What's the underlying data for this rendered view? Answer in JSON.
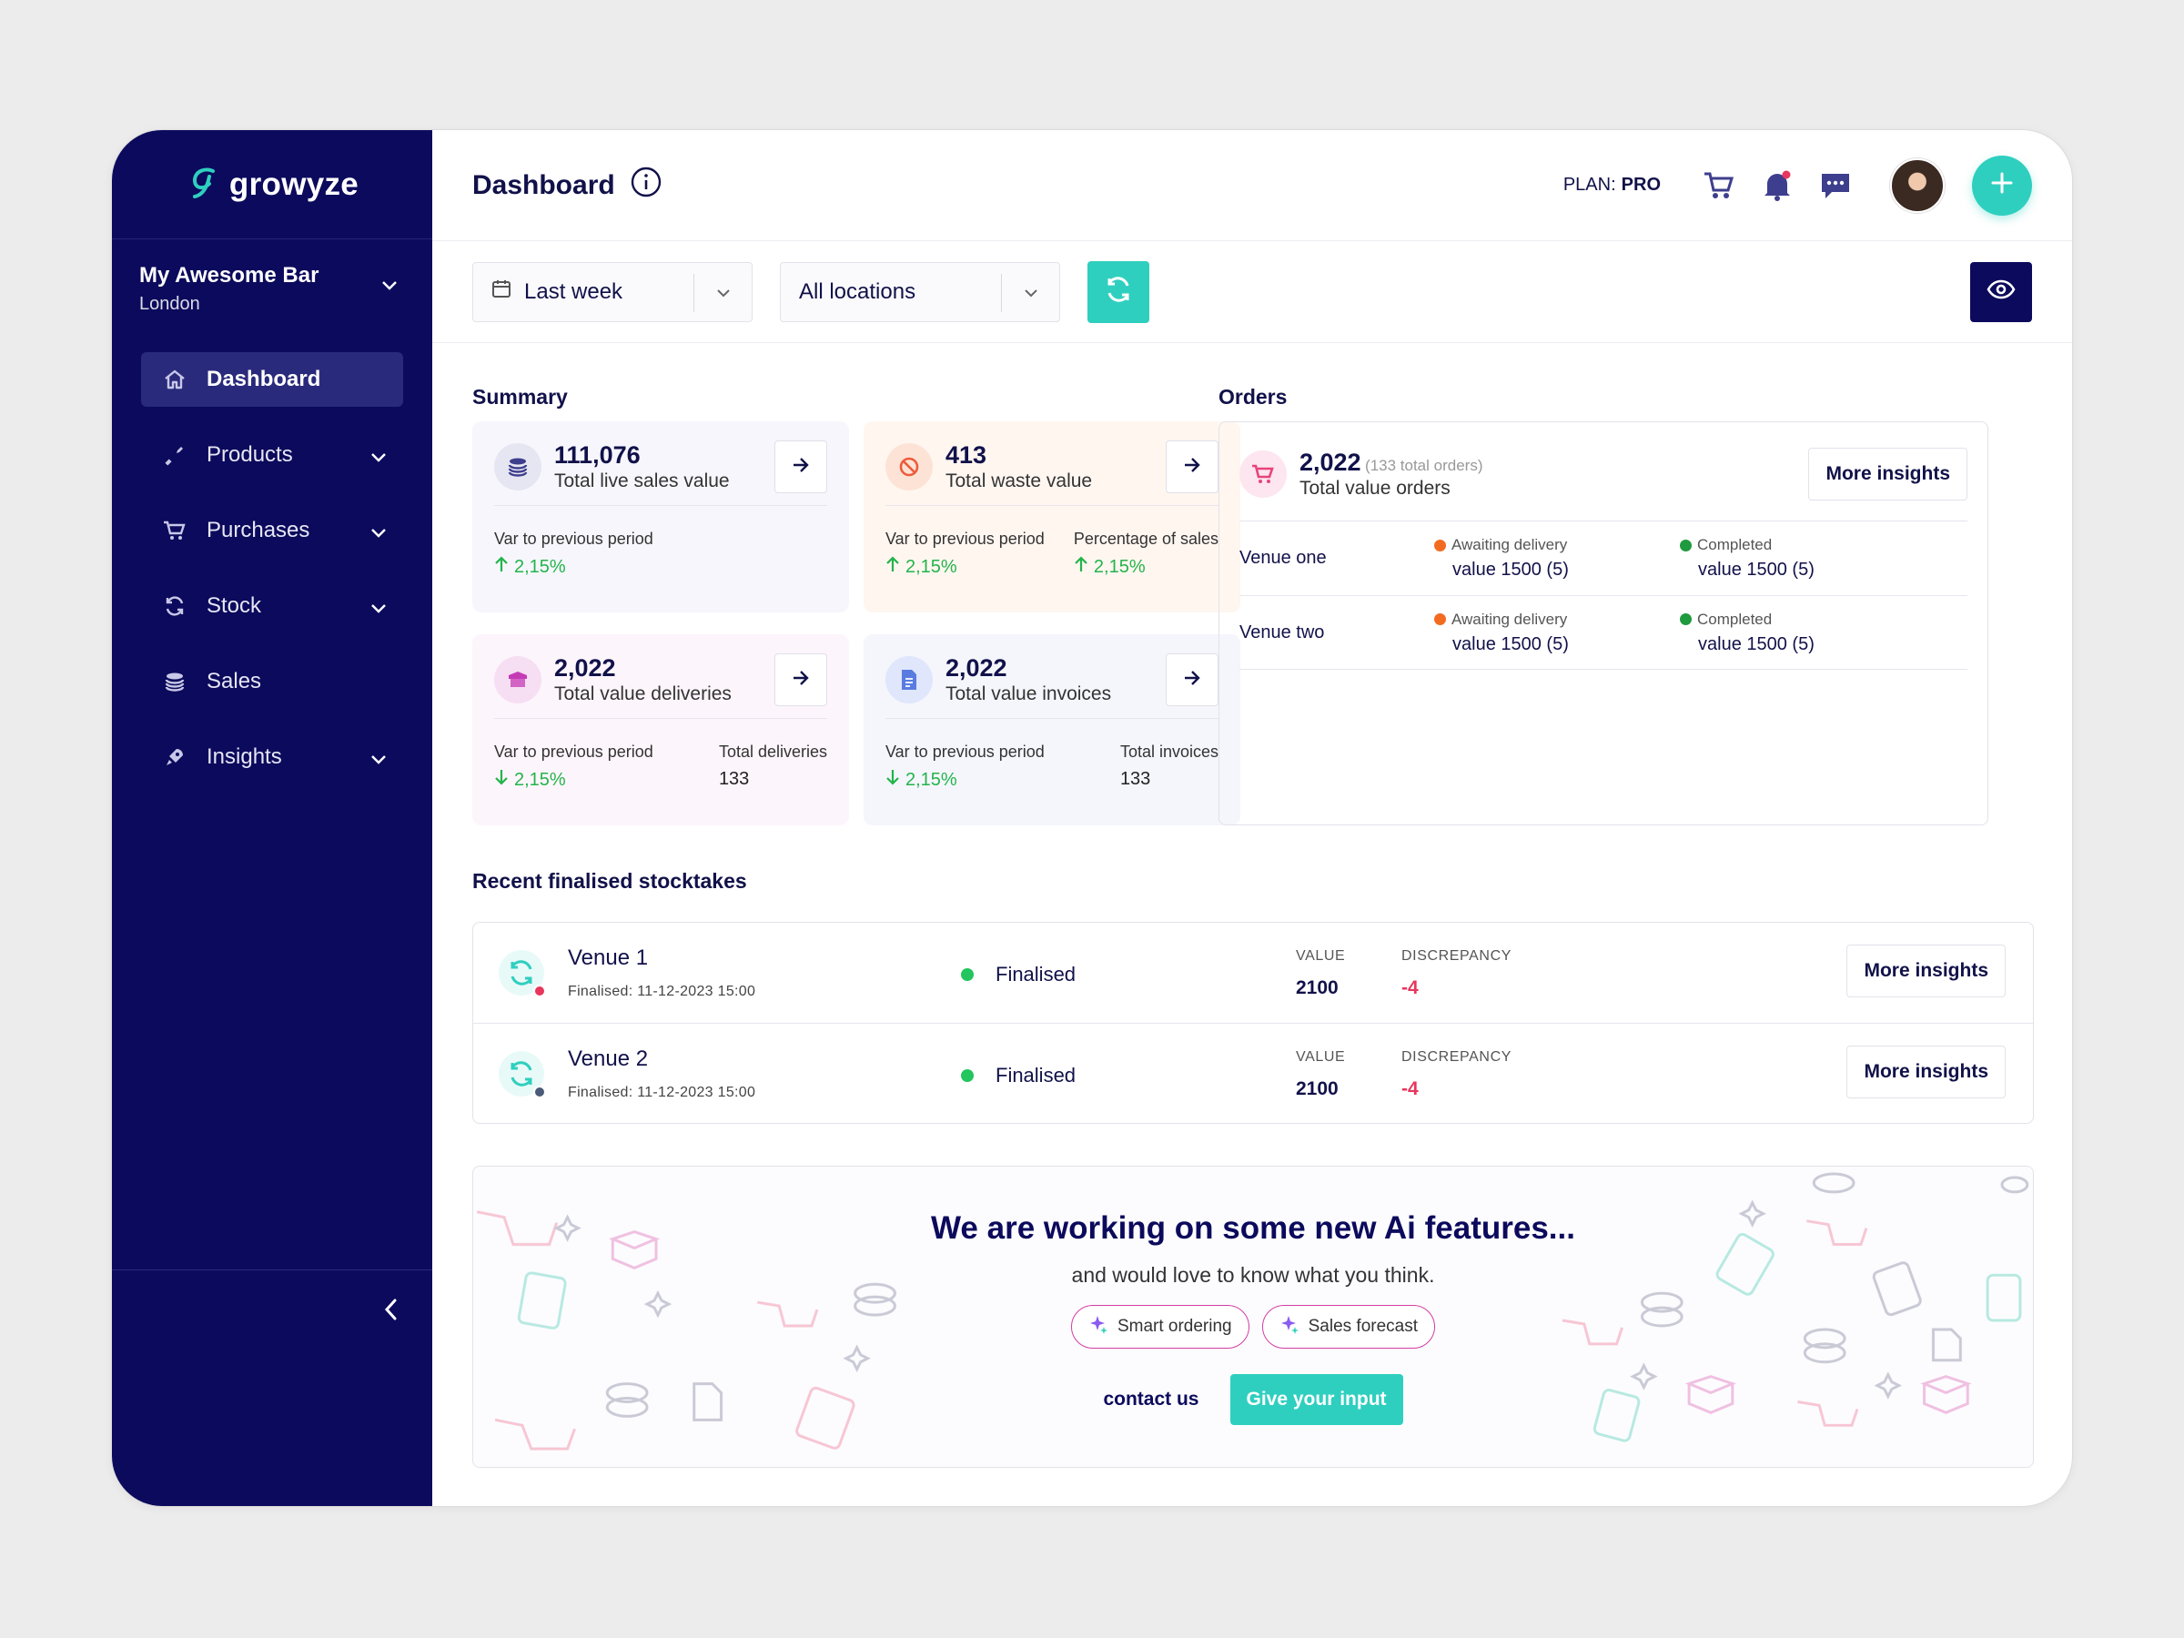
{
  "brand": {
    "name": "growyze"
  },
  "venue": {
    "name": "My Awesome Bar",
    "location": "London"
  },
  "nav": [
    {
      "label": "Dashboard",
      "icon": "home-icon",
      "active": true
    },
    {
      "label": "Products",
      "icon": "bottle-icon"
    },
    {
      "label": "Purchases",
      "icon": "cart-icon"
    },
    {
      "label": "Stock",
      "icon": "refresh-icon"
    },
    {
      "label": "Sales",
      "icon": "coins-icon"
    },
    {
      "label": "Insights",
      "icon": "rocket-icon"
    }
  ],
  "header": {
    "title": "Dashboard",
    "plan_label": "PLAN:",
    "plan_value": "PRO"
  },
  "filters": {
    "period": "Last week",
    "location": "All locations"
  },
  "summary": {
    "title": "Summary",
    "cards": [
      {
        "value": "111,076",
        "label": "Total live sales value",
        "foot_label": "Var to previous period",
        "foot_value": "2,15%",
        "trend": "up"
      },
      {
        "value": "413",
        "label": "Total waste value",
        "foot_label": "Var to previous period",
        "foot_value": "2,15%",
        "foot2_label": "Percentage of sales",
        "foot2_value": "2,15%",
        "trend": "up"
      },
      {
        "value": "2,022",
        "label": "Total value deliveries",
        "foot_label": "Var to previous period",
        "foot_value": "2,15%",
        "foot2_label": "Total deliveries",
        "foot2_value": "133",
        "trend": "down"
      },
      {
        "value": "2,022",
        "label": "Total value invoices",
        "foot_label": "Var to previous period",
        "foot_value": "2,15%",
        "foot2_label": "Total invoices",
        "foot2_value": "133",
        "trend": "down"
      }
    ]
  },
  "orders": {
    "title": "Orders",
    "value": "2,022",
    "total_note": "(133 total orders)",
    "label": "Total value orders",
    "more_label": "More insights",
    "rows": [
      {
        "venue": "Venue one",
        "awaiting_label": "Awaiting delivery",
        "awaiting_value": "value 1500 (5)",
        "completed_label": "Completed",
        "completed_value": "value 1500 (5)"
      },
      {
        "venue": "Venue two",
        "awaiting_label": "Awaiting delivery",
        "awaiting_value": "value 1500 (5)",
        "completed_label": "Completed",
        "completed_value": "value 1500 (5)"
      }
    ]
  },
  "stocktakes": {
    "title": "Recent finalised stocktakes",
    "value_key": "VALUE",
    "discrepancy_key": "DISCREPANCY",
    "more_label": "More insights",
    "rows": [
      {
        "venue": "Venue 1",
        "date": "Finalised: 11-12-2023 15:00",
        "status": "Finalised",
        "value": "2100",
        "discrepancy": "-4",
        "badge_color": "#e8365d"
      },
      {
        "venue": "Venue 2",
        "date": "Finalised: 11-12-2023 15:00",
        "status": "Finalised",
        "value": "2100",
        "discrepancy": "-4",
        "badge_color": "#4a5a78"
      }
    ]
  },
  "promo": {
    "title": "We are working on some new Ai features...",
    "subtitle": "and would love to know what you think.",
    "chips": [
      "Smart ordering",
      "Sales forecast"
    ],
    "contact_label": "contact us",
    "cta_label": "Give your input"
  },
  "colors": {
    "sidebar": "#0c0a5c",
    "accent": "#2fcfbf",
    "positive": "#23b44a",
    "negative": "#e8365d",
    "awaiting": "#f26b21",
    "completed": "#1f9a3e"
  }
}
